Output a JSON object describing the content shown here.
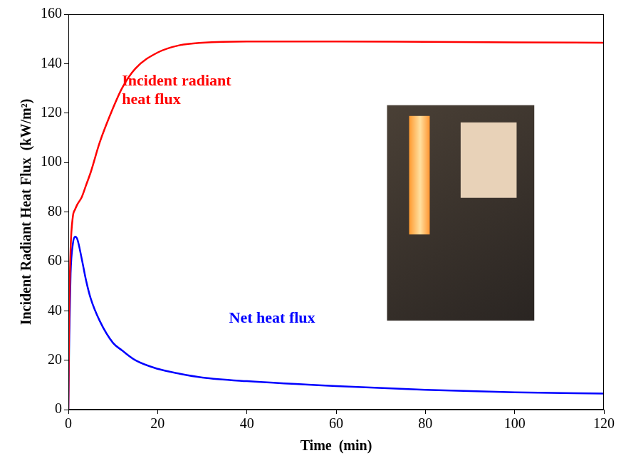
{
  "chart_data": {
    "type": "line",
    "x_label": "Time  (min)",
    "y_label": "Incident Radiant Heat Flux  (kW/m²)",
    "x": [
      0,
      0.2,
      0.5,
      1,
      1.5,
      2,
      3,
      4,
      5,
      7,
      10,
      12,
      15,
      20,
      25,
      30,
      40,
      60,
      80,
      100,
      120
    ],
    "series": [
      {
        "color": "#ff0000",
        "values": [
          0,
          40,
          65,
          78,
          81,
          83,
          86,
          91,
          96,
          108,
          122,
          130,
          138,
          144.5,
          147.5,
          148.5,
          149,
          149,
          148.8,
          148.6,
          148.5
        ]
      },
      {
        "color": "#0000ff",
        "values": [
          0,
          30,
          55,
          67,
          70,
          69,
          61,
          52,
          45,
          36,
          27,
          24,
          20,
          16.5,
          14.5,
          13,
          11.5,
          9.5,
          8,
          7,
          6.5
        ]
      }
    ],
    "annotations": [
      {
        "text": "Incident radiant heat flux",
        "x": 12,
        "y": 136,
        "color": "#ff0000"
      },
      {
        "text": "Net heat flux",
        "x": 36,
        "y": 40,
        "color": "#0000ff"
      }
    ],
    "xlim": [
      0,
      120
    ],
    "xticks": [
      0,
      20,
      40,
      60,
      80,
      100,
      120
    ],
    "ylim": [
      0,
      160
    ],
    "yticks": [
      0,
      20,
      40,
      60,
      80,
      100,
      120,
      140,
      160
    ],
    "grid": false
  }
}
